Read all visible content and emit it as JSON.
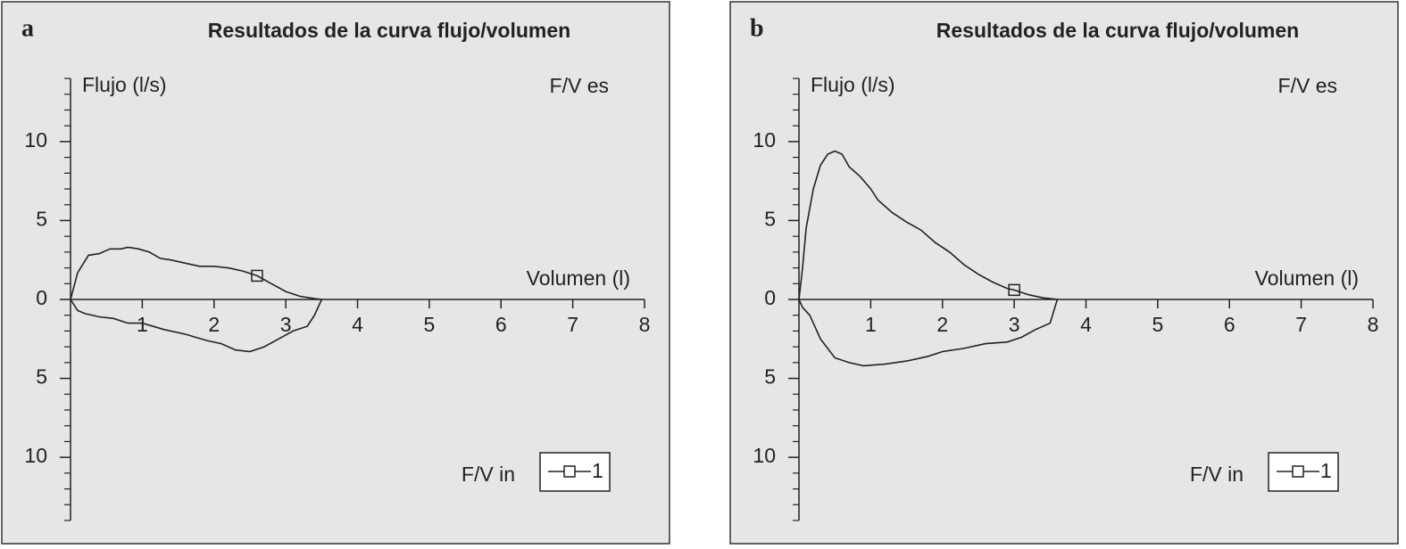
{
  "chart_data": [
    {
      "type": "line",
      "panel_label": "a",
      "title": "Resultados de la curva flujo/volumen",
      "x_label": "Volumen (l)",
      "y_label": "Flujo (l/s)",
      "annotations": [
        "F/V es",
        "F/V in"
      ],
      "xlim": [
        0,
        8
      ],
      "xticks": [
        1,
        2,
        3,
        4,
        5,
        6,
        7,
        8
      ],
      "ylim": [
        -14,
        14
      ],
      "yticks": [
        {
          "value": -10,
          "label": "10"
        },
        {
          "value": -5,
          "label": "5"
        },
        0,
        5,
        10
      ],
      "y_minor_ticks": [
        -14,
        -13,
        -12,
        -11,
        -9,
        -8,
        -7,
        -6,
        -4,
        -3,
        -2,
        -1,
        1,
        2,
        3,
        4,
        6,
        7,
        8,
        9,
        11,
        12,
        13,
        14
      ],
      "series": [
        {
          "name": "1",
          "color": "#222222",
          "marker": "square",
          "marker_x": 2.6,
          "marker_y": 1.5,
          "x": [
            0,
            0.1,
            0.25,
            0.4,
            0.55,
            0.7,
            0.8,
            0.95,
            1.1,
            1.25,
            1.4,
            1.6,
            1.8,
            2.0,
            2.2,
            2.4,
            2.6,
            2.8,
            3.0,
            3.2,
            3.4,
            3.5,
            3.4,
            3.3,
            3.1,
            2.9,
            2.7,
            2.5,
            2.3,
            2.1,
            1.9,
            1.6,
            1.3,
            1.0,
            0.8,
            0.6,
            0.4,
            0.2,
            0.1,
            0
          ],
          "values": [
            0,
            1.7,
            2.8,
            2.9,
            3.2,
            3.2,
            3.3,
            3.2,
            3.0,
            2.6,
            2.5,
            2.3,
            2.1,
            2.1,
            2.0,
            1.8,
            1.5,
            1.0,
            0.5,
            0.2,
            0.05,
            0,
            -1.0,
            -1.7,
            -2.0,
            -2.5,
            -3.0,
            -3.3,
            -3.2,
            -2.8,
            -2.6,
            -2.2,
            -1.9,
            -1.5,
            -1.5,
            -1.2,
            -1.1,
            -0.9,
            -0.7,
            0
          ]
        }
      ]
    },
    {
      "type": "line",
      "panel_label": "b",
      "title": "Resultados de la curva flujo/volumen",
      "x_label": "Volumen (l)",
      "y_label": "Flujo (l/s)",
      "annotations": [
        "F/V es",
        "F/V in"
      ],
      "xlim": [
        0,
        8
      ],
      "xticks": [
        1,
        2,
        3,
        4,
        5,
        6,
        7,
        8
      ],
      "ylim": [
        -14,
        14
      ],
      "yticks": [
        {
          "value": -10,
          "label": "10"
        },
        {
          "value": -5,
          "label": "5"
        },
        0,
        5,
        10
      ],
      "y_minor_ticks": [
        -14,
        -13,
        -12,
        -11,
        -9,
        -8,
        -7,
        -6,
        -4,
        -3,
        -2,
        -1,
        1,
        2,
        3,
        4,
        6,
        7,
        8,
        9,
        11,
        12,
        13,
        14
      ],
      "series": [
        {
          "name": "1",
          "color": "#222222",
          "marker": "square",
          "marker_x": 3.0,
          "marker_y": 0.6,
          "x": [
            0,
            0.05,
            0.1,
            0.2,
            0.3,
            0.4,
            0.5,
            0.6,
            0.7,
            0.85,
            1.0,
            1.1,
            1.3,
            1.5,
            1.7,
            1.9,
            2.1,
            2.3,
            2.5,
            2.7,
            2.9,
            3.0,
            3.2,
            3.4,
            3.6,
            3.5,
            3.3,
            3.1,
            2.9,
            2.6,
            2.3,
            2.0,
            1.8,
            1.5,
            1.2,
            0.9,
            0.7,
            0.5,
            0.3,
            0.15,
            0.05,
            0
          ],
          "values": [
            0,
            2,
            4.5,
            7,
            8.5,
            9.2,
            9.4,
            9.2,
            8.4,
            7.8,
            7.0,
            6.3,
            5.5,
            4.9,
            4.4,
            3.6,
            3.0,
            2.2,
            1.6,
            1.1,
            0.7,
            0.6,
            0.3,
            0.1,
            0,
            -1.5,
            -1.9,
            -2.4,
            -2.7,
            -2.8,
            -3.1,
            -3.3,
            -3.6,
            -3.9,
            -4.1,
            -4.2,
            -4.0,
            -3.7,
            -2.5,
            -1.0,
            -0.5,
            0
          ]
        }
      ]
    }
  ]
}
